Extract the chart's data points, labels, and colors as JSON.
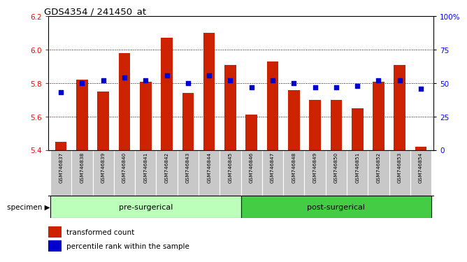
{
  "title": "GDS4354 / 241450_at",
  "samples": [
    "GSM746837",
    "GSM746838",
    "GSM746839",
    "GSM746840",
    "GSM746841",
    "GSM746842",
    "GSM746843",
    "GSM746844",
    "GSM746845",
    "GSM746846",
    "GSM746847",
    "GSM746848",
    "GSM746849",
    "GSM746850",
    "GSM746851",
    "GSM746852",
    "GSM746853",
    "GSM746854"
  ],
  "bar_values": [
    5.45,
    5.82,
    5.75,
    5.98,
    5.81,
    6.07,
    5.74,
    6.1,
    5.91,
    5.61,
    5.93,
    5.76,
    5.7,
    5.7,
    5.65,
    5.81,
    5.91,
    5.42
  ],
  "percentile_values": [
    43,
    50,
    52,
    54,
    52,
    56,
    50,
    56,
    52,
    47,
    52,
    50,
    47,
    47,
    48,
    52,
    52,
    46
  ],
  "ylim_left": [
    5.4,
    6.2
  ],
  "ylim_right": [
    0,
    100
  ],
  "yticks_left": [
    5.4,
    5.6,
    5.8,
    6.0,
    6.2
  ],
  "yticks_right": [
    0,
    25,
    50,
    75,
    100
  ],
  "ytick_labels_right": [
    "0",
    "25",
    "50",
    "75",
    "100%"
  ],
  "bar_color": "#cc2200",
  "dot_color": "#0000cc",
  "pre_surgical_count": 9,
  "post_surgical_count": 9,
  "pre_label": "pre-surgerical",
  "post_label": "post-surgerical",
  "legend_bar_label": "transformed count",
  "legend_dot_label": "percentile rank within the sample",
  "tick_area_color": "#c8c8c8",
  "pre_bg": "#bbffbb",
  "post_bg": "#44cc44"
}
